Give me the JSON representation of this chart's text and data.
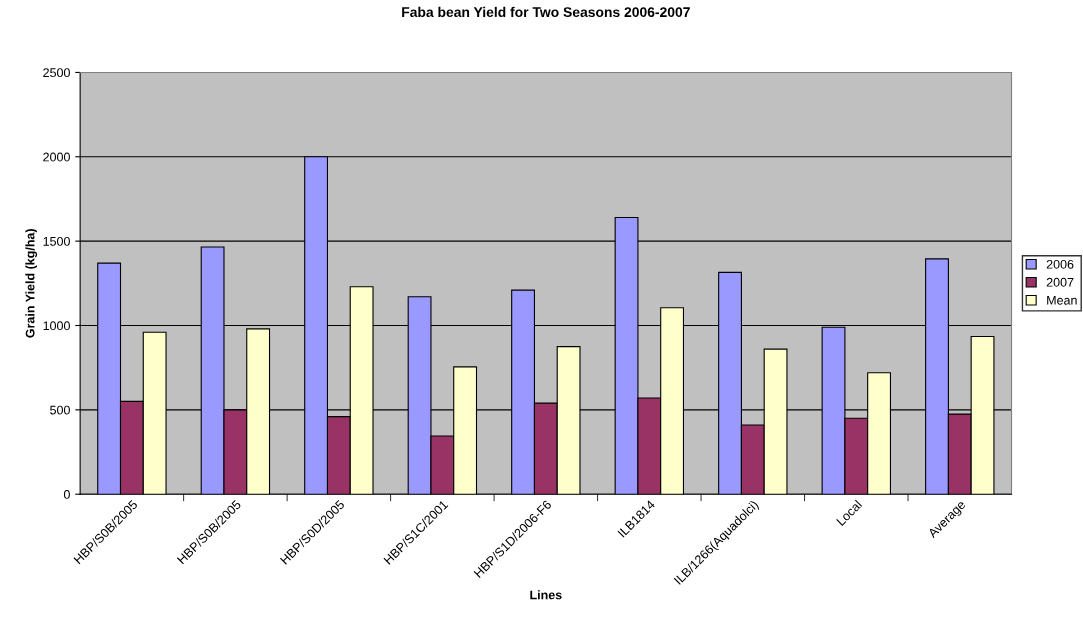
{
  "chart_data": {
    "type": "bar",
    "title": "Faba bean Yield for Two Seasons 2006-2007",
    "xlabel": "Lines",
    "ylabel": "Grain Yield (kg/ha)",
    "categories": [
      "HBP/S0B/2005",
      "HBP/S0B/2005",
      "HBP/S0D/2005",
      "HBP/S1C/2001",
      "HBP/S1D/2006-F6",
      "ILB1814",
      "ILB/1266(Aquadolci)",
      "Local",
      "Average"
    ],
    "series": [
      {
        "name": "2006",
        "color": "#9999ff",
        "values": [
          1370,
          1465,
          2000,
          1170,
          1210,
          1640,
          1315,
          990,
          1395
        ]
      },
      {
        "name": "2007",
        "color": "#993366",
        "values": [
          550,
          500,
          460,
          345,
          540,
          570,
          410,
          450,
          475
        ]
      },
      {
        "name": "Mean",
        "color": "#ffffcc",
        "values": [
          960,
          980,
          1230,
          755,
          875,
          1105,
          860,
          720,
          935
        ]
      }
    ],
    "ylim": [
      0,
      2500
    ],
    "yticks": [
      0,
      500,
      1000,
      1500,
      2000,
      2500
    ],
    "grid": "y",
    "legend": "right"
  }
}
